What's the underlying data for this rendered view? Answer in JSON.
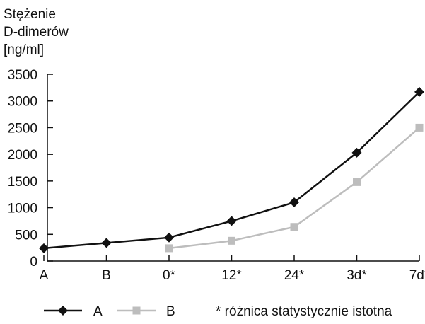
{
  "chart_data": {
    "type": "line",
    "ylabel_lines": [
      "Stężenie",
      "D-dimerów",
      "[ng/ml]"
    ],
    "categories": [
      "A",
      "B",
      "0*",
      "12*",
      "24*",
      "3d*",
      "7d*"
    ],
    "yticks": [
      0,
      500,
      1000,
      1500,
      2000,
      2500,
      3000,
      3500
    ],
    "ylim": [
      0,
      3500
    ],
    "grid": false,
    "legend_position": "bottom",
    "series": [
      {
        "name": "A",
        "marker": "diamond",
        "color": "#111111",
        "values": [
          240,
          340,
          440,
          750,
          1100,
          2030,
          3170
        ]
      },
      {
        "name": "B",
        "marker": "square",
        "color": "#bdbdbd",
        "values": [
          null,
          null,
          240,
          380,
          640,
          1480,
          2500
        ]
      }
    ],
    "annotation": "* różnica statystycznie istotna"
  }
}
